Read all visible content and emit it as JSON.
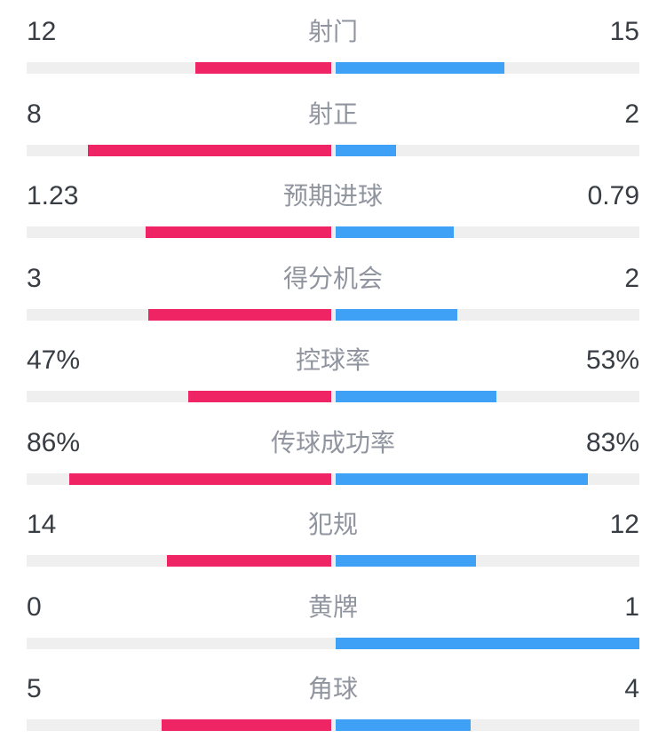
{
  "colors": {
    "home_bar": "#ef2464",
    "away_bar": "#3ea1f5",
    "track": "#efefef",
    "value_text": "#383c43",
    "label_text": "#8f949e",
    "background": "#ffffff"
  },
  "chart_data": {
    "type": "bar",
    "subtype": "head-to-head match-statistics comparison; pink bars (home/left value) and blue bars (away/right value) grow outward from the center of a gray track; bar length = value / (sum of both values), or value / 100 for percentage stats",
    "title": "",
    "legend_position": "none",
    "rows": [
      {
        "label": "射门",
        "left": "12",
        "right": "15",
        "left_value": 12,
        "right_value": 15,
        "percent": false
      },
      {
        "label": "射正",
        "left": "8",
        "right": "2",
        "left_value": 8,
        "right_value": 2,
        "percent": false
      },
      {
        "label": "预期进球",
        "left": "1.23",
        "right": "0.79",
        "left_value": 1.23,
        "right_value": 0.79,
        "percent": false
      },
      {
        "label": "得分机会",
        "left": "3",
        "right": "2",
        "left_value": 3,
        "right_value": 2,
        "percent": false
      },
      {
        "label": "控球率",
        "left": "47%",
        "right": "53%",
        "left_value": 47,
        "right_value": 53,
        "percent": true
      },
      {
        "label": "传球成功率",
        "left": "86%",
        "right": "83%",
        "left_value": 86,
        "right_value": 83,
        "percent": true
      },
      {
        "label": "犯规",
        "left": "14",
        "right": "12",
        "left_value": 14,
        "right_value": 12,
        "percent": false
      },
      {
        "label": "黄牌",
        "left": "0",
        "right": "1",
        "left_value": 0,
        "right_value": 1,
        "percent": false
      },
      {
        "label": "角球",
        "left": "5",
        "right": "4",
        "left_value": 5,
        "right_value": 4,
        "percent": false
      }
    ]
  }
}
